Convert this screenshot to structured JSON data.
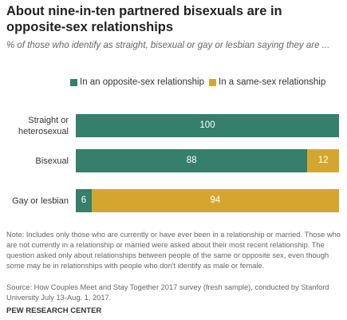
{
  "chart_data": {
    "type": "stacked-bar",
    "title": "About nine-in-ten partnered bisexuals are in opposite-sex relationships",
    "subtitle": "% of those who identify as straight, bisexual or gay or lesbian saying they are ...",
    "categories": [
      "Straight or heterosexual",
      "Bisexual",
      "Gay or lesbian"
    ],
    "series": [
      {
        "name": "In an opposite-sex relationship",
        "color": "#357f6b",
        "values": [
          100,
          88,
          6
        ]
      },
      {
        "name": "In a same-sex relationship",
        "color": "#d5a62f",
        "values": [
          0,
          12,
          94
        ]
      }
    ],
    "xlim": [
      0,
      100
    ],
    "note": "Note: Includes only those who are currently or have ever been in a relationship or married. Those who are not currently in a relationship or married were asked about their most recent relationship. The question asked only about relationships between people of the same or opposite sex, even though some may be in relationships with people who don't identify as male or female.",
    "source": "Source: How Couples Meet and Stay Together 2017 survey (fresh sample), conducted by Stanford University July 13-Aug. 1, 2017.",
    "credit": "PEW RESEARCH CENTER"
  }
}
